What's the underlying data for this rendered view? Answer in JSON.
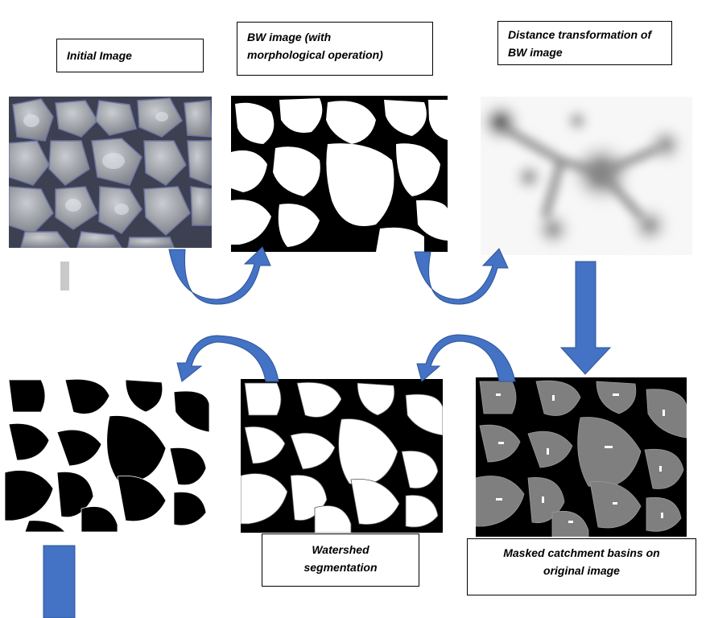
{
  "labels": {
    "initial": "Initial Image",
    "bw_line1": "BW image (with",
    "bw_line2": "morphological operation)",
    "dist_line1": "Distance transformation of",
    "dist_line2": "BW image",
    "watershed_line1": "Watershed",
    "watershed_line2": "segmentation",
    "masked_line1": "Masked catchment basins on",
    "masked_line2": "original image"
  },
  "colors": {
    "arrow": "#4472c4",
    "arrow_stroke": "#2f5597",
    "grain_gray": "#8f9296",
    "basin_gray": "#7f7f7f"
  }
}
